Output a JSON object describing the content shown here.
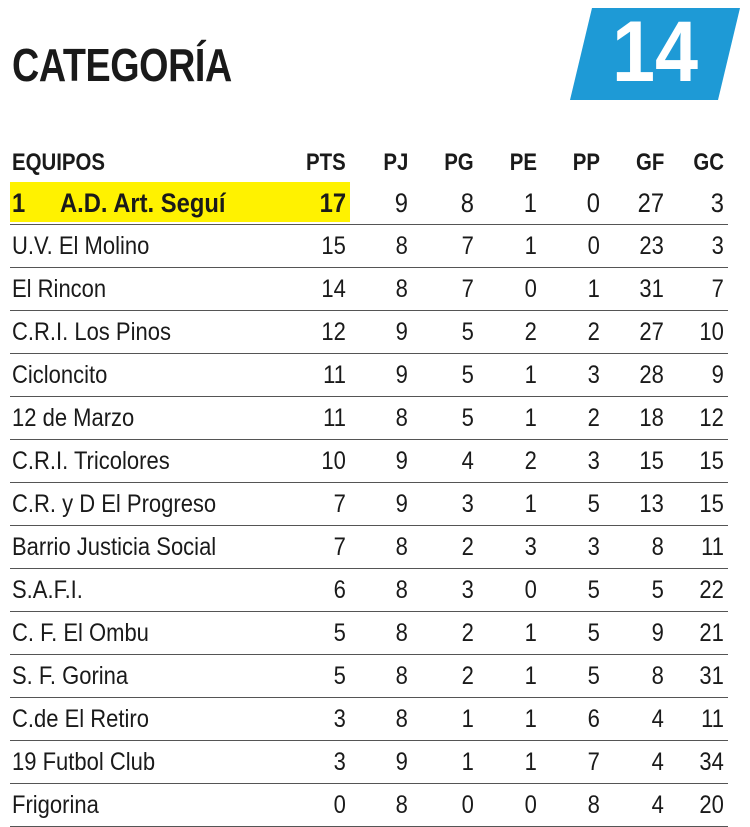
{
  "title": "CATEGORÍA",
  "category_number": "14",
  "colors": {
    "badge": "#1e9ad6",
    "highlight": "#fff200"
  },
  "columns": [
    "EQUIPOS",
    "PTS",
    "PJ",
    "PG",
    "PE",
    "PP",
    "GF",
    "GC"
  ],
  "leader": {
    "rank": "1",
    "team": "A.D. Art. Seguí",
    "pts": "17",
    "pj": "9",
    "pg": "8",
    "pe": "1",
    "pp": "0",
    "gf": "27",
    "gc": "3"
  },
  "rows": [
    {
      "team": "U.V. El Molino",
      "pts": "15",
      "pj": "8",
      "pg": "7",
      "pe": "1",
      "pp": "0",
      "gf": "23",
      "gc": "3"
    },
    {
      "team": "El Rincon",
      "pts": "14",
      "pj": "8",
      "pg": "7",
      "pe": "0",
      "pp": "1",
      "gf": "31",
      "gc": "7"
    },
    {
      "team": "C.R.I. Los Pinos",
      "pts": "12",
      "pj": "9",
      "pg": "5",
      "pe": "2",
      "pp": "2",
      "gf": "27",
      "gc": "10"
    },
    {
      "team": "Cicloncito",
      "pts": "11",
      "pj": "9",
      "pg": "5",
      "pe": "1",
      "pp": "3",
      "gf": "28",
      "gc": "9"
    },
    {
      "team": "12 de Marzo",
      "pts": "11",
      "pj": "8",
      "pg": "5",
      "pe": "1",
      "pp": "2",
      "gf": "18",
      "gc": "12"
    },
    {
      "team": "C.R.I. Tricolores",
      "pts": "10",
      "pj": "9",
      "pg": "4",
      "pe": "2",
      "pp": "3",
      "gf": "15",
      "gc": "15"
    },
    {
      "team": "C.R. y D El Progreso",
      "pts": "7",
      "pj": "9",
      "pg": "3",
      "pe": "1",
      "pp": "5",
      "gf": "13",
      "gc": "15"
    },
    {
      "team": "Barrio Justicia Social",
      "pts": "7",
      "pj": "8",
      "pg": "2",
      "pe": "3",
      "pp": "3",
      "gf": "8",
      "gc": "11"
    },
    {
      "team": "S.A.F.I.",
      "pts": "6",
      "pj": "8",
      "pg": "3",
      "pe": "0",
      "pp": "5",
      "gf": "5",
      "gc": "22"
    },
    {
      "team": "C. F. El Ombu",
      "pts": "5",
      "pj": "8",
      "pg": "2",
      "pe": "1",
      "pp": "5",
      "gf": "9",
      "gc": "21"
    },
    {
      "team": "S. F. Gorina",
      "pts": "5",
      "pj": "8",
      "pg": "2",
      "pe": "1",
      "pp": "5",
      "gf": "8",
      "gc": "31"
    },
    {
      "team": "C.de El Retiro",
      "pts": "3",
      "pj": "8",
      "pg": "1",
      "pe": "1",
      "pp": "6",
      "gf": "4",
      "gc": "11"
    },
    {
      "team": "19 Futbol Club",
      "pts": "3",
      "pj": "9",
      "pg": "1",
      "pe": "1",
      "pp": "7",
      "gf": "4",
      "gc": "34"
    },
    {
      "team": "Frigorina",
      "pts": "0",
      "pj": "8",
      "pg": "0",
      "pe": "0",
      "pp": "8",
      "gf": "4",
      "gc": "20"
    }
  ]
}
